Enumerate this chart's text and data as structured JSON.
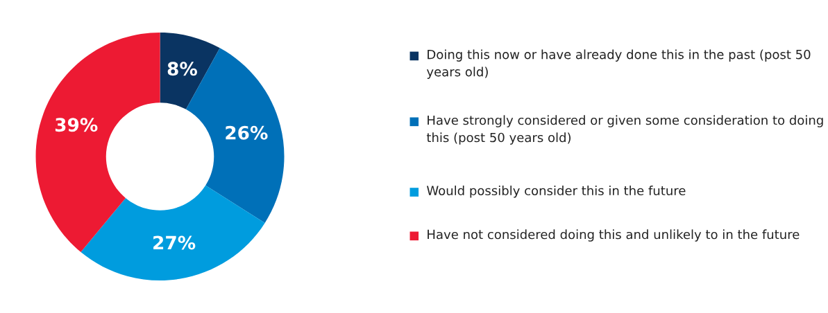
{
  "chart_data": {
    "type": "donut",
    "categories": [
      "Doing this now or have already done this in the past (post 50 years old)",
      "Have strongly considered or given some consideration to doing this (post 50 years old)",
      "Would possibly consider this in the future",
      "Have not considered doing this and unlikely to in the future"
    ],
    "values": [
      8,
      26,
      27,
      39
    ],
    "colors": [
      "#0a3462",
      "#0070b8",
      "#009cde",
      "#ed1a33"
    ],
    "value_labels": [
      "8%",
      "26%",
      "27%",
      "39%"
    ],
    "legend": "right"
  }
}
